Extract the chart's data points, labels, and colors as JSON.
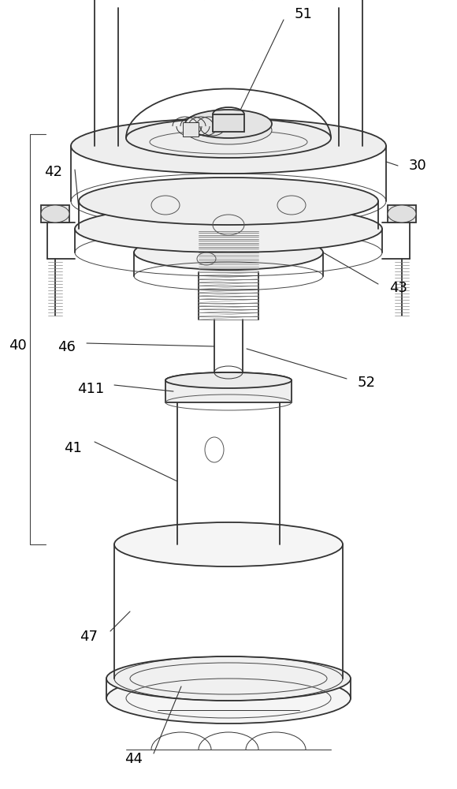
{
  "bg_color": "#ffffff",
  "line_color": "#333333",
  "fig_width": 5.8,
  "fig_height": 10.0,
  "dpi": 100
}
